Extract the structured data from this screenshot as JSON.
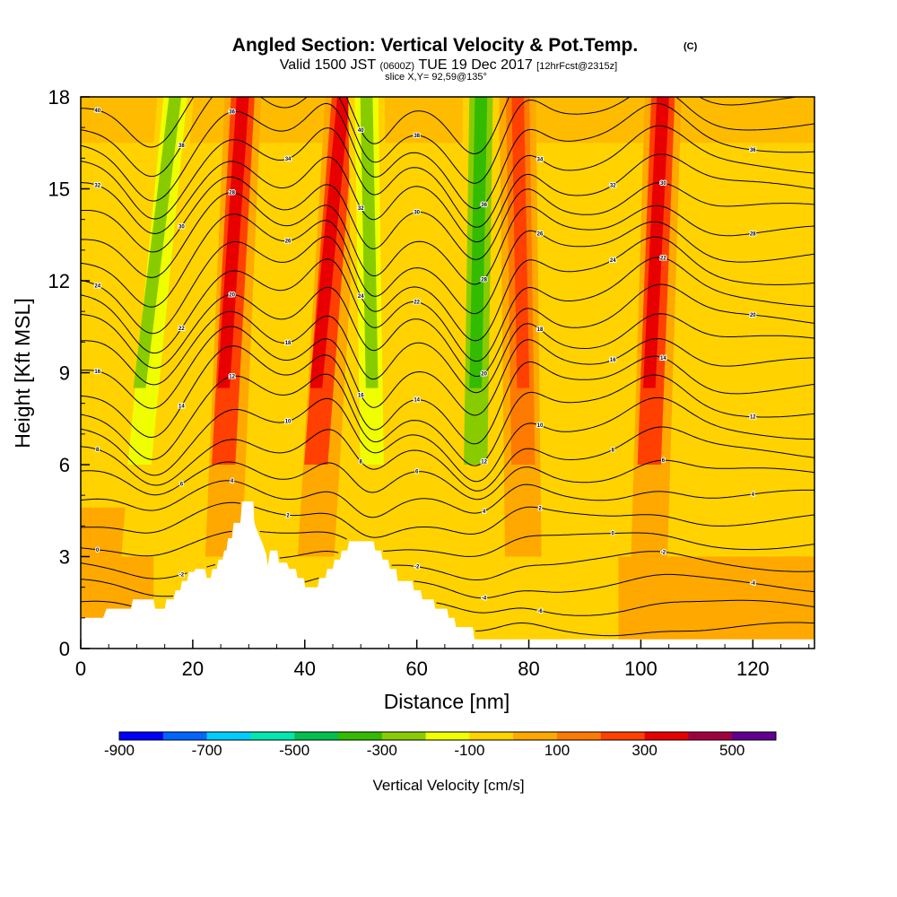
{
  "chart_data": {
    "type": "heatmap",
    "title": "Angled Section: Vertical Velocity & Pot.Temp.",
    "title_suffix": "(C)",
    "subtitle": {
      "part1": "Valid 1500 JST",
      "part2": "(0600Z)",
      "part3": "TUE 19 Dec 2017",
      "part4": "[12hrFcst@2315z]"
    },
    "slice_label": "slice X,Y= 92,59@135°",
    "xlabel": "Distance [nm]",
    "ylabel": "Height [Kft MSL]",
    "xlim": [
      0,
      131
    ],
    "ylim": [
      0,
      18
    ],
    "xticks": [
      "0",
      "20",
      "40",
      "60",
      "80",
      "100",
      "120"
    ],
    "yticks": [
      "0",
      "3",
      "6",
      "9",
      "12",
      "15",
      "18"
    ],
    "colorbar": {
      "label": "Vertical Velocity [cm/s]",
      "tick_labels": [
        "-900",
        "-700",
        "-500",
        "-300",
        "-100",
        "100",
        "300",
        "500"
      ],
      "bin_edges": [
        -900,
        -800,
        -700,
        -600,
        -500,
        -400,
        -300,
        -200,
        -100,
        0,
        100,
        200,
        300,
        400,
        500,
        600
      ],
      "colors": [
        "#0000ff",
        "#0066ff",
        "#00ccff",
        "#00e8b0",
        "#00c050",
        "#33bb00",
        "#88cc00",
        "#f0ff00",
        "#ffd200",
        "#ffa800",
        "#ff7a00",
        "#ff4000",
        "#e80000",
        "#a00040",
        "#600090"
      ]
    },
    "velocity_bands": [
      {
        "x_bottom": 10.5,
        "x_top": 17.0,
        "value": -300
      },
      {
        "x_bottom": 25.5,
        "x_top": 29.0,
        "value": 300
      },
      {
        "x_bottom": 42.0,
        "x_top": 47.0,
        "value": 300
      },
      {
        "x_bottom": 52.0,
        "x_top": 51.0,
        "value": -300
      },
      {
        "x_bottom": 70.5,
        "x_top": 71.5,
        "value": -400
      },
      {
        "x_bottom": 79.0,
        "x_top": 78.0,
        "value": 200
      },
      {
        "x_bottom": 101.5,
        "x_top": 104.0,
        "value": 300
      }
    ],
    "terrain": [
      [
        0,
        1.0
      ],
      [
        4,
        1.0
      ],
      [
        4.6,
        1.3
      ],
      [
        9,
        1.3
      ],
      [
        9.3,
        1.6
      ],
      [
        13,
        1.6
      ],
      [
        13.3,
        1.3
      ],
      [
        15,
        1.3
      ],
      [
        15.3,
        1.6
      ],
      [
        16.6,
        1.6
      ],
      [
        16.9,
        1.9
      ],
      [
        17.8,
        1.9
      ],
      [
        18.1,
        2.2
      ],
      [
        19,
        2.2
      ],
      [
        19.3,
        2.5
      ],
      [
        20.2,
        2.5
      ],
      [
        20.5,
        2.6
      ],
      [
        22.2,
        2.6
      ],
      [
        22.5,
        2.3
      ],
      [
        23.2,
        2.3
      ],
      [
        23.5,
        2.6
      ],
      [
        24.3,
        2.6
      ],
      [
        24.6,
        2.9
      ],
      [
        25.3,
        2.9
      ],
      [
        25.6,
        3.2
      ],
      [
        26,
        3.2
      ],
      [
        26.3,
        3.6
      ],
      [
        27,
        3.6
      ],
      [
        27.3,
        4.1
      ],
      [
        28.5,
        4.1
      ],
      [
        28.8,
        4.8
      ],
      [
        30.8,
        4.8
      ],
      [
        31,
        4.1
      ],
      [
        31.6,
        3.8
      ],
      [
        32.3,
        3.5
      ],
      [
        33.1,
        3.1
      ],
      [
        33.4,
        2.7
      ],
      [
        33.8,
        3.2
      ],
      [
        35.1,
        3.2
      ],
      [
        35.4,
        2.8
      ],
      [
        36.8,
        2.8
      ],
      [
        37.2,
        2.6
      ],
      [
        38.4,
        2.6
      ],
      [
        38.7,
        2.3
      ],
      [
        39.8,
        2.3
      ],
      [
        40.1,
        2.0
      ],
      [
        42.3,
        2.0
      ],
      [
        42.6,
        2.3
      ],
      [
        43.7,
        2.3
      ],
      [
        44,
        2.6
      ],
      [
        45,
        2.6
      ],
      [
        45.3,
        2.9
      ],
      [
        46.3,
        2.9
      ],
      [
        46.6,
        3.2
      ],
      [
        47.6,
        3.2
      ],
      [
        47.9,
        3.5
      ],
      [
        52.3,
        3.5
      ],
      [
        52.6,
        3.2
      ],
      [
        53.6,
        3.2
      ],
      [
        53.9,
        2.9
      ],
      [
        54.9,
        2.9
      ],
      [
        55.2,
        2.6
      ],
      [
        56.3,
        2.6
      ],
      [
        56.6,
        2.2
      ],
      [
        59.2,
        2.2
      ],
      [
        59.5,
        1.9
      ],
      [
        60.7,
        1.9
      ],
      [
        61,
        1.6
      ],
      [
        63,
        1.6
      ],
      [
        63.3,
        1.3
      ],
      [
        65.4,
        1.3
      ],
      [
        65.7,
        1.0
      ],
      [
        66.7,
        1.0
      ],
      [
        67,
        0.7
      ],
      [
        70,
        0.7
      ],
      [
        70.3,
        0.3
      ],
      [
        131,
        0.3
      ]
    ],
    "isentrope_levels": [
      -8,
      -6,
      -4,
      -2,
      0,
      2,
      4,
      6,
      8,
      10,
      12,
      14,
      16,
      18,
      20,
      22,
      24,
      26,
      28,
      30,
      32,
      34,
      36,
      38,
      40
    ],
    "contour_label_samples": [
      "14",
      "10",
      "12",
      "8",
      "16",
      "18",
      "20",
      "22",
      "24",
      "26",
      "28",
      "30",
      "32"
    ]
  }
}
